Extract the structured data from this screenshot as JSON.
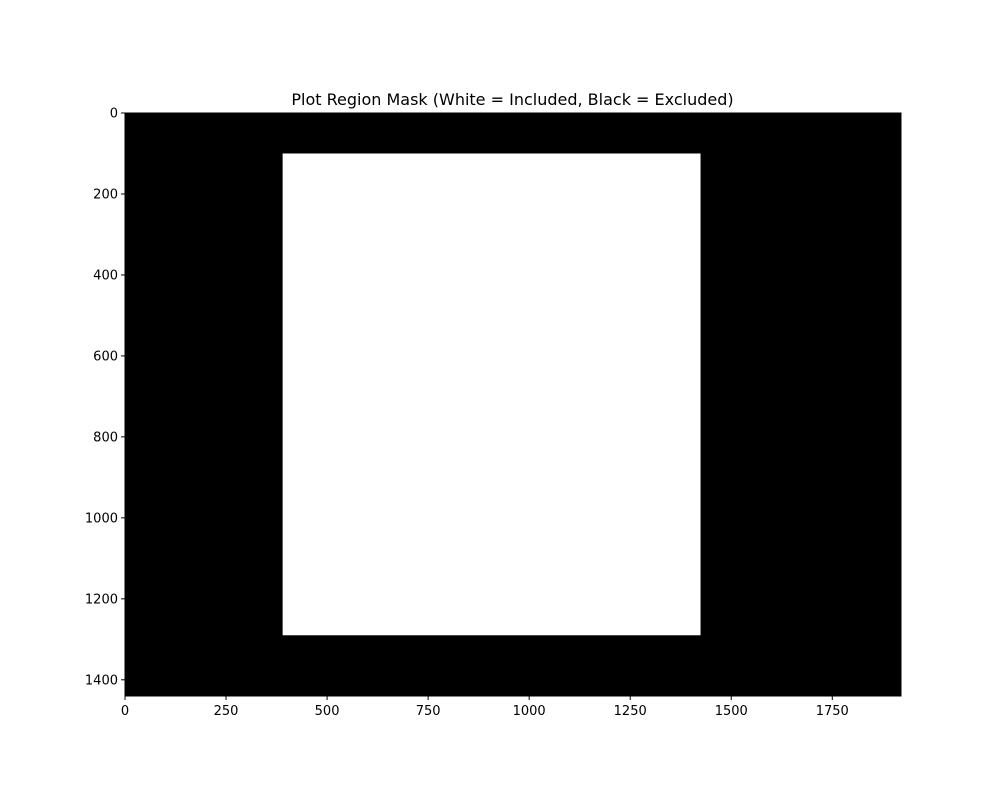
{
  "chart_data": {
    "type": "heatmap",
    "title": "Plot Region Mask (White = Included, Black = Excluded)",
    "xlabel": "",
    "ylabel": "",
    "xlim": [
      0,
      1920
    ],
    "ylim": [
      1440,
      0
    ],
    "y_axis_inverted": true,
    "grid": false,
    "colormap": "gray",
    "background_value": "excluded",
    "background_color": "#000000",
    "regions": [
      {
        "label": "included",
        "color": "#ffffff",
        "x_range": [
          390,
          1424
        ],
        "y_range": [
          100,
          1290
        ]
      }
    ],
    "x_ticks": [
      0,
      250,
      500,
      750,
      1000,
      1250,
      1500,
      1750
    ],
    "x_tick_labels": [
      "0",
      "250",
      "500",
      "750",
      "1000",
      "1250",
      "1500",
      "1750"
    ],
    "y_ticks": [
      0,
      200,
      400,
      600,
      800,
      1000,
      1200,
      1400
    ],
    "y_tick_labels": [
      "0",
      "200",
      "400",
      "600",
      "800",
      "1000",
      "1200",
      "1400"
    ]
  }
}
